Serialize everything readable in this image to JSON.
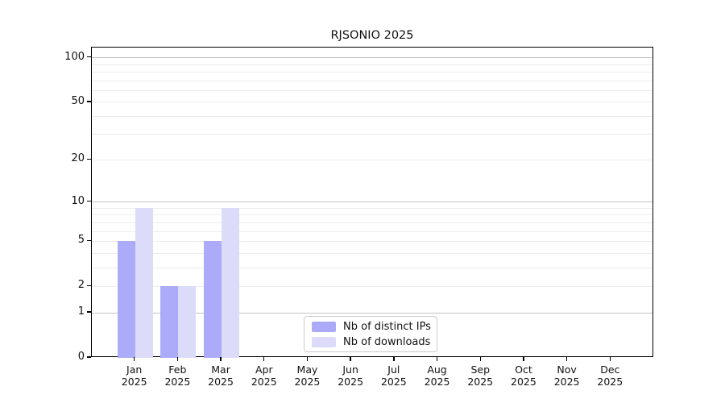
{
  "chart_data": {
    "type": "bar",
    "title": "RJSONIO 2025",
    "categories": [
      "Jan",
      "Feb",
      "Mar",
      "Apr",
      "May",
      "Jun",
      "Jul",
      "Aug",
      "Sep",
      "Oct",
      "Nov",
      "Dec"
    ],
    "x_second_line": "2025",
    "series": [
      {
        "name": "Nb of distinct IPs",
        "color": "#ababfa",
        "values": [
          5,
          2,
          5,
          0,
          0,
          0,
          0,
          0,
          0,
          0,
          0,
          0
        ]
      },
      {
        "name": "Nb of downloads",
        "color": "#dcdcfa",
        "values": [
          9,
          2,
          9,
          0,
          0,
          0,
          0,
          0,
          0,
          0,
          0,
          0
        ]
      }
    ],
    "xlabel": "",
    "ylabel": "",
    "yscale": "log1p",
    "yticks": [
      0,
      1,
      2,
      5,
      10,
      20,
      50,
      100
    ],
    "ylim": [
      0,
      117
    ],
    "grid": {
      "on": true,
      "major_lines": [
        1,
        10,
        100
      ],
      "minor_lines": [
        2,
        3,
        4,
        5,
        6,
        7,
        8,
        9,
        20,
        30,
        40,
        50,
        60,
        70,
        80,
        90
      ]
    },
    "legend_position": "lower center inside"
  },
  "colors": {
    "bar_distinct_ips": "#ababfa",
    "bar_downloads": "#dcdcfa",
    "grid_major": "#c3c3c3",
    "grid_minor": "#ececec",
    "spine": "#000000",
    "legend_border": "#cccccc",
    "text": "#111111"
  }
}
